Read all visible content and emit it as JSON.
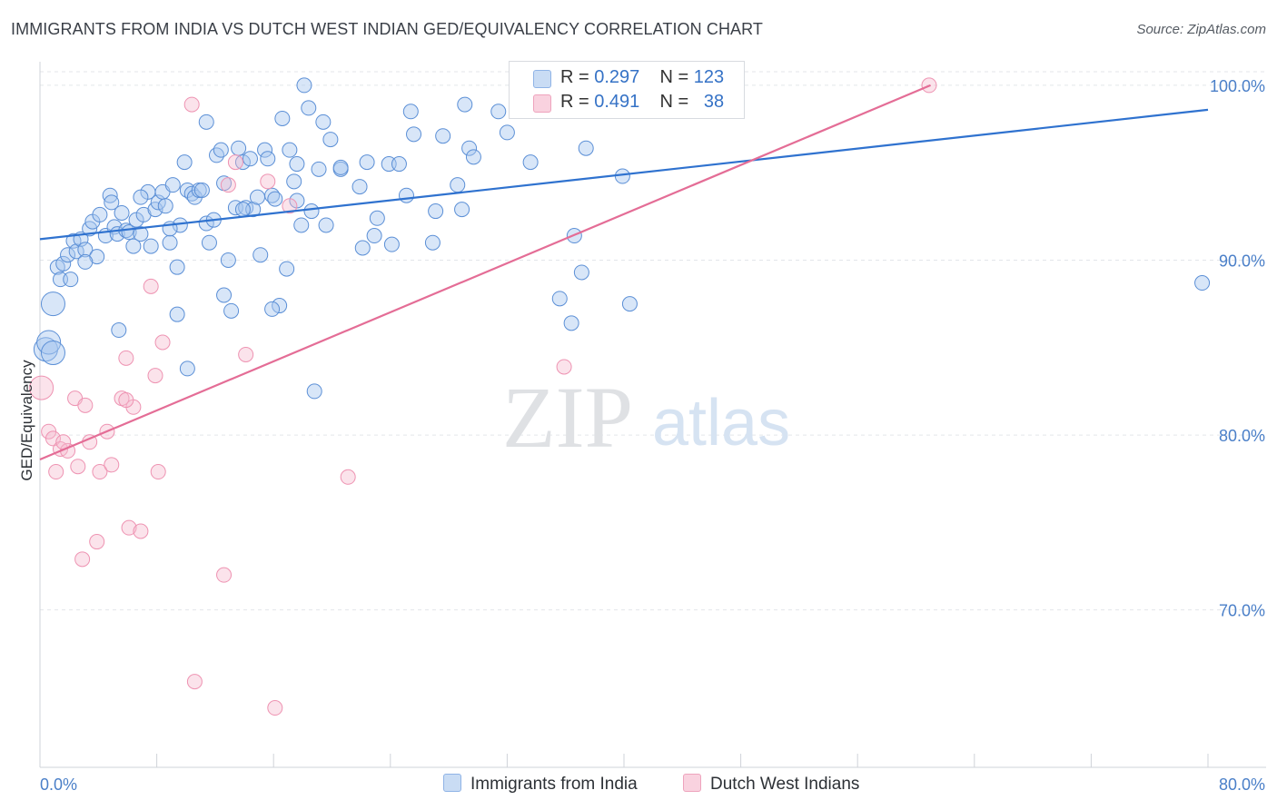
{
  "header": {
    "title": "IMMIGRANTS FROM INDIA VS DUTCH WEST INDIAN GED/EQUIVALENCY CORRELATION CHART",
    "source": "Source: ZipAtlas.com"
  },
  "watermark": {
    "zip": "ZIP",
    "atlas": "atlas"
  },
  "legend": {
    "rows": [
      {
        "r_label": "R = ",
        "r_value": "0.297",
        "n_label": "N = ",
        "n_value": "123",
        "color": "#a9c7ef"
      },
      {
        "r_label": "R = ",
        "r_value": "0.491",
        "n_label": "N = ",
        "n_value": "38",
        "color": "#f5b8cc"
      }
    ]
  },
  "bottom_legend": {
    "items": [
      {
        "label": "Immigrants from India",
        "color": "#a9c7ef"
      },
      {
        "label": "Dutch West Indians",
        "color": "#f5b8cc"
      }
    ]
  },
  "chart_data": {
    "type": "scatter",
    "title": "IMMIGRANTS FROM INDIA VS DUTCH WEST INDIAN GED/EQUIVALENCY CORRELATION CHART",
    "xlabel": "",
    "ylabel": "GED/Equivalency",
    "xlim": [
      0,
      80
    ],
    "ylim": [
      61,
      101.5
    ],
    "x_tick_labels": [
      "0.0%",
      "80.0%"
    ],
    "y_ticks": [
      70,
      80,
      90,
      100
    ],
    "y_tick_labels": [
      "70.0%",
      "80.0%",
      "90.0%",
      "100.0%"
    ],
    "grid": true,
    "legend_position": "top-center",
    "colors": {
      "india": "#5b8fd6",
      "india_line": "#2f72cf",
      "dwi": "#ee93b2",
      "dwi_line": "#e46d96"
    },
    "series": [
      {
        "name": "Immigrants from India",
        "R": 0.297,
        "N": 123,
        "trend": {
          "x": [
            0,
            80
          ],
          "y": [
            91.2,
            98.6
          ]
        },
        "points": [
          [
            0.4,
            84.9
          ],
          [
            0.6,
            85.3
          ],
          [
            0.9,
            84.7
          ],
          [
            0.9,
            87.5
          ],
          [
            1.2,
            89.6
          ],
          [
            1.4,
            88.9
          ],
          [
            1.6,
            89.8
          ],
          [
            1.9,
            90.3
          ],
          [
            2.1,
            88.9
          ],
          [
            2.3,
            91.1
          ],
          [
            2.5,
            90.5
          ],
          [
            2.8,
            91.2
          ],
          [
            3.1,
            90.6
          ],
          [
            3.4,
            91.8
          ],
          [
            3.6,
            92.2
          ],
          [
            3.9,
            90.2
          ],
          [
            4.1,
            92.6
          ],
          [
            4.5,
            91.4
          ],
          [
            4.8,
            93.7
          ],
          [
            5.1,
            91.9
          ],
          [
            5.3,
            91.5
          ],
          [
            5.6,
            92.7
          ],
          [
            5.9,
            91.7
          ],
          [
            6.1,
            91.6
          ],
          [
            6.4,
            90.8
          ],
          [
            6.6,
            92.3
          ],
          [
            6.9,
            91.5
          ],
          [
            7.1,
            92.6
          ],
          [
            7.4,
            93.9
          ],
          [
            7.6,
            90.8
          ],
          [
            7.9,
            92.9
          ],
          [
            8.1,
            93.3
          ],
          [
            8.4,
            93.9
          ],
          [
            8.6,
            93.1
          ],
          [
            8.9,
            91.0
          ],
          [
            9.1,
            94.3
          ],
          [
            9.4,
            89.6
          ],
          [
            9.6,
            92.0
          ],
          [
            9.9,
            95.6
          ],
          [
            10.1,
            94.0
          ],
          [
            10.4,
            93.8
          ],
          [
            10.6,
            93.6
          ],
          [
            10.9,
            94.0
          ],
          [
            11.1,
            94.0
          ],
          [
            11.4,
            92.1
          ],
          [
            11.6,
            91.0
          ],
          [
            11.9,
            92.3
          ],
          [
            12.1,
            96.0
          ],
          [
            12.4,
            96.3
          ],
          [
            12.6,
            94.4
          ],
          [
            12.9,
            90.0
          ],
          [
            13.1,
            87.1
          ],
          [
            13.4,
            93.0
          ],
          [
            13.6,
            96.4
          ],
          [
            13.9,
            95.6
          ],
          [
            14.1,
            93.0
          ],
          [
            14.4,
            95.8
          ],
          [
            14.6,
            92.9
          ],
          [
            14.9,
            93.6
          ],
          [
            15.1,
            90.3
          ],
          [
            15.4,
            96.3
          ],
          [
            15.6,
            95.8
          ],
          [
            15.9,
            93.7
          ],
          [
            16.1,
            93.5
          ],
          [
            16.4,
            87.4
          ],
          [
            16.6,
            98.1
          ],
          [
            16.9,
            89.5
          ],
          [
            17.1,
            96.3
          ],
          [
            17.4,
            94.5
          ],
          [
            17.6,
            93.4
          ],
          [
            17.9,
            92.0
          ],
          [
            18.1,
            100.0
          ],
          [
            18.4,
            98.7
          ],
          [
            18.6,
            92.8
          ],
          [
            19.1,
            95.2
          ],
          [
            19.4,
            97.9
          ],
          [
            19.6,
            92.0
          ],
          [
            19.9,
            96.9
          ],
          [
            20.6,
            95.2
          ],
          [
            21.9,
            94.2
          ],
          [
            22.1,
            90.7
          ],
          [
            22.4,
            95.6
          ],
          [
            23.1,
            92.4
          ],
          [
            23.9,
            95.5
          ],
          [
            24.1,
            90.9
          ],
          [
            24.6,
            95.5
          ],
          [
            25.1,
            93.7
          ],
          [
            25.4,
            98.5
          ],
          [
            25.6,
            97.2
          ],
          [
            27.1,
            92.8
          ],
          [
            27.6,
            97.1
          ],
          [
            28.6,
            94.3
          ],
          [
            28.9,
            92.9
          ],
          [
            29.1,
            98.9
          ],
          [
            29.4,
            96.4
          ],
          [
            29.7,
            95.9
          ],
          [
            31.4,
            98.5
          ],
          [
            32.0,
            97.3
          ],
          [
            33.6,
            95.6
          ],
          [
            35.6,
            87.8
          ],
          [
            36.4,
            86.4
          ],
          [
            36.6,
            91.4
          ],
          [
            37.1,
            89.3
          ],
          [
            37.4,
            96.4
          ],
          [
            39.9,
            94.8
          ],
          [
            40.4,
            87.5
          ],
          [
            79.6,
            88.7
          ],
          [
            10.1,
            83.8
          ],
          [
            18.8,
            82.5
          ],
          [
            5.4,
            86.0
          ],
          [
            9.4,
            86.9
          ],
          [
            12.6,
            88.0
          ],
          [
            15.9,
            87.2
          ],
          [
            20.6,
            95.3
          ],
          [
            26.9,
            91.0
          ],
          [
            13.9,
            92.9
          ],
          [
            17.6,
            95.5
          ],
          [
            22.9,
            91.4
          ],
          [
            3.1,
            89.9
          ],
          [
            6.9,
            93.6
          ],
          [
            11.4,
            97.9
          ],
          [
            4.9,
            93.3
          ],
          [
            8.9,
            91.8
          ]
        ]
      },
      {
        "name": "Dutch West Indians",
        "R": 0.491,
        "N": 38,
        "trend": {
          "x": [
            0,
            61
          ],
          "y": [
            78.6,
            100.0
          ]
        },
        "points": [
          [
            0.1,
            82.7
          ],
          [
            0.6,
            80.2
          ],
          [
            0.9,
            79.8
          ],
          [
            1.1,
            77.9
          ],
          [
            1.4,
            79.2
          ],
          [
            1.9,
            79.1
          ],
          [
            2.4,
            82.1
          ],
          [
            2.6,
            78.2
          ],
          [
            2.9,
            72.9
          ],
          [
            3.1,
            81.7
          ],
          [
            3.4,
            79.6
          ],
          [
            3.9,
            73.9
          ],
          [
            4.1,
            77.9
          ],
          [
            4.6,
            80.2
          ],
          [
            4.9,
            78.3
          ],
          [
            5.6,
            82.1
          ],
          [
            5.9,
            84.4
          ],
          [
            6.1,
            74.7
          ],
          [
            6.4,
            81.6
          ],
          [
            6.9,
            74.5
          ],
          [
            7.6,
            88.5
          ],
          [
            7.9,
            83.4
          ],
          [
            8.1,
            77.9
          ],
          [
            8.4,
            85.3
          ],
          [
            10.4,
            98.9
          ],
          [
            10.6,
            65.9
          ],
          [
            12.6,
            72.0
          ],
          [
            12.9,
            94.3
          ],
          [
            13.4,
            95.6
          ],
          [
            14.1,
            84.6
          ],
          [
            15.6,
            94.5
          ],
          [
            16.1,
            64.4
          ],
          [
            17.1,
            93.1
          ],
          [
            21.1,
            77.6
          ],
          [
            35.9,
            83.9
          ],
          [
            60.9,
            100.0
          ],
          [
            1.6,
            79.6
          ],
          [
            5.9,
            82.0
          ]
        ]
      }
    ]
  }
}
